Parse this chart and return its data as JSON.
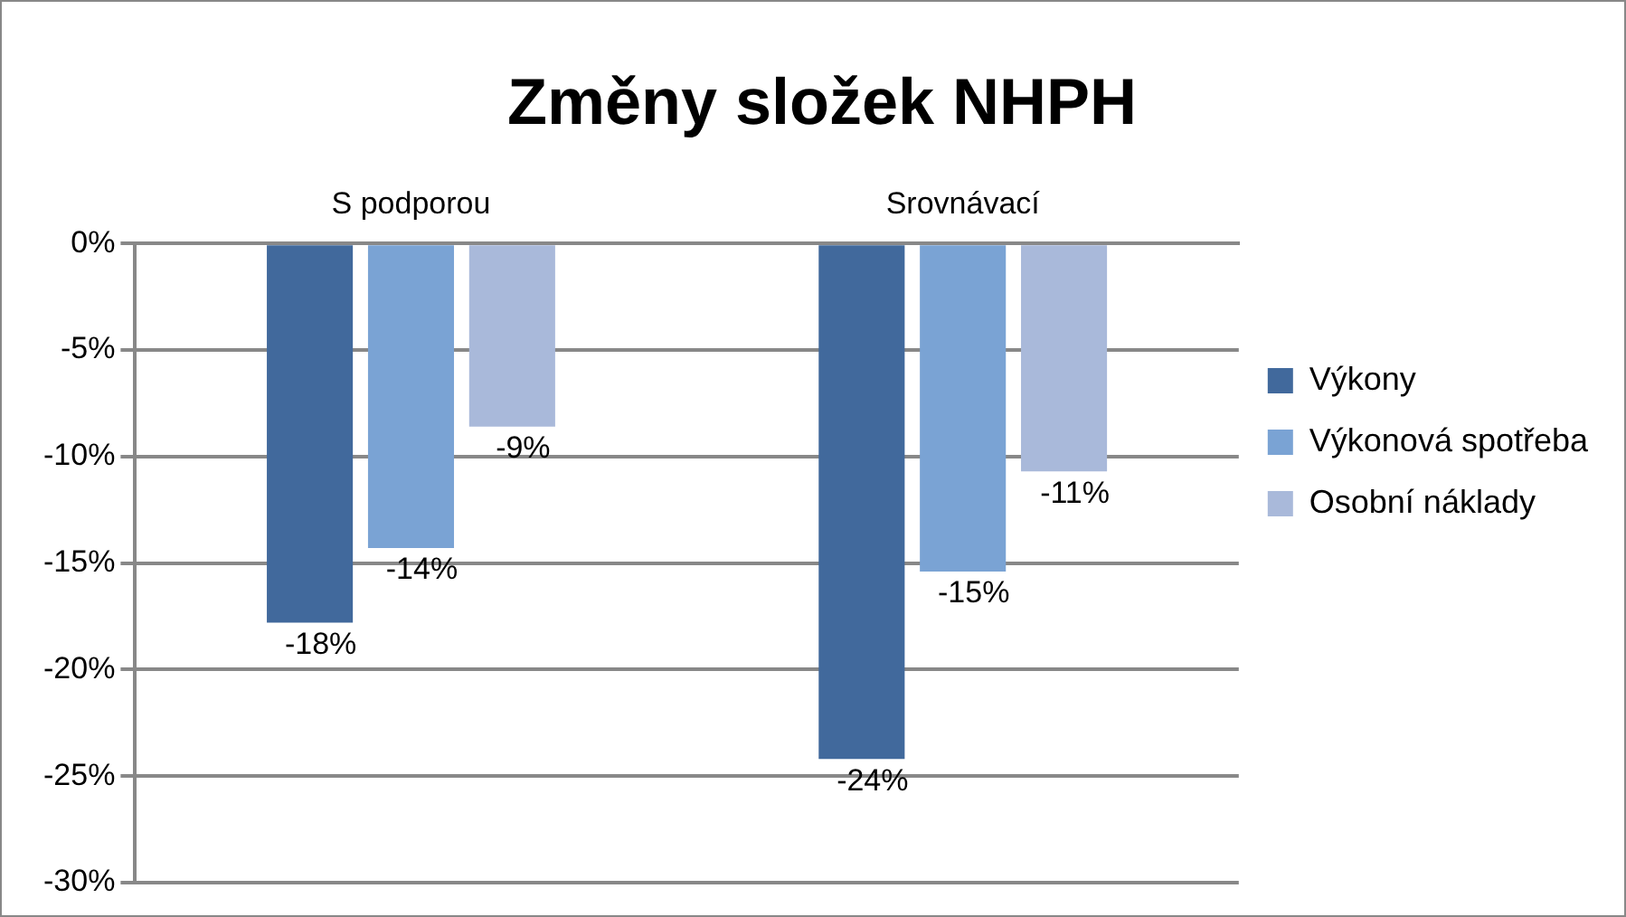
{
  "chart_data": {
    "type": "bar",
    "title": "Změny složek NHPH",
    "categories": [
      "S podporou",
      "Srovnávací"
    ],
    "series": [
      {
        "name": "Výkony",
        "color": "#41699c",
        "values": [
          -17.8,
          -24.2
        ],
        "value_labels": [
          "-18%",
          "-24%"
        ]
      },
      {
        "name": "Výkonová spotřeba",
        "color": "#7aa3d4",
        "values": [
          -14.3,
          -15.4
        ],
        "value_labels": [
          "-14%",
          "-15%"
        ]
      },
      {
        "name": "Osobní náklady",
        "color": "#a9b9da",
        "values": [
          -8.6,
          -10.7
        ],
        "value_labels": [
          "-9%",
          "-11%"
        ]
      }
    ],
    "ylim": [
      -30,
      0
    ],
    "yticks": [
      {
        "value": 0,
        "label": "0%"
      },
      {
        "value": -5,
        "label": "-5%"
      },
      {
        "value": -10,
        "label": "-10%"
      },
      {
        "value": -15,
        "label": "-15%"
      },
      {
        "value": -20,
        "label": "-20%"
      },
      {
        "value": -25,
        "label": "-25%"
      },
      {
        "value": -30,
        "label": "-30%"
      }
    ],
    "grid": "y",
    "legend": "right"
  }
}
